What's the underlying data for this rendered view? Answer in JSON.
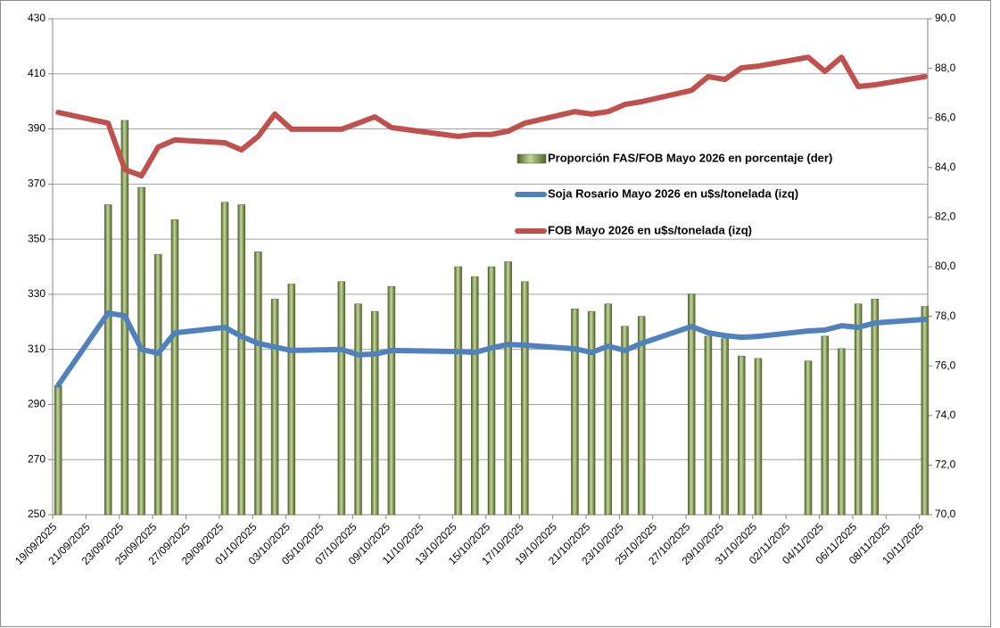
{
  "chart_data": {
    "type": "combo",
    "x": [
      "19/09/2025",
      "22/09/2025",
      "23/09/2025",
      "24/09/2025",
      "25/09/2025",
      "26/09/2025",
      "29/09/2025",
      "30/09/2025",
      "01/10/2025",
      "02/10/2025",
      "03/10/2025",
      "06/10/2025",
      "07/10/2025",
      "08/10/2025",
      "09/10/2025",
      "13/10/2025",
      "14/10/2025",
      "15/10/2025",
      "16/10/2025",
      "17/10/2025",
      "20/10/2025",
      "21/10/2025",
      "22/10/2025",
      "23/10/2025",
      "24/10/2025",
      "27/10/2025",
      "28/10/2025",
      "29/10/2025",
      "30/10/2025",
      "31/10/2025",
      "03/11/2025",
      "04/11/2025",
      "05/11/2025",
      "06/11/2025",
      "07/11/2025",
      "10/11/2025"
    ],
    "series": [
      {
        "name": "Proporción FAS/FOB Mayo 2026 en porcentaje (der)",
        "type": "bar",
        "axis": "y2",
        "color": "#6b8c2e",
        "values": [
          75.2,
          82.5,
          85.9,
          83.2,
          80.5,
          81.9,
          82.6,
          82.5,
          80.6,
          78.7,
          79.3,
          79.4,
          78.5,
          78.2,
          79.2,
          80.0,
          79.6,
          80.0,
          80.2,
          79.4,
          78.3,
          78.2,
          78.5,
          77.6,
          78.0,
          78.9,
          77.2,
          77.1,
          76.4,
          76.3,
          76.2,
          77.2,
          76.7,
          78.5,
          78.7,
          78.4
        ]
      },
      {
        "name": "Soja Rosario Mayo 2026 en u$s/tonelada (izq)",
        "type": "line",
        "color": "#4f81bd",
        "values": [
          297,
          323.2,
          322.2,
          310,
          308.6,
          316,
          318,
          314.7,
          312.2,
          310.9,
          309.6,
          310,
          308,
          308.3,
          309.6,
          309.2,
          308.9,
          310.5,
          311.8,
          311.5,
          310.2,
          308.9,
          311.2,
          309.6,
          312.2,
          318.3,
          316,
          315,
          314.4,
          314.7,
          316.7,
          317,
          318.6,
          318,
          319.6,
          320.9
        ]
      },
      {
        "name": "FOB Mayo 2026 en u$s/tonelada (izq)",
        "type": "line",
        "color": "#c0504d",
        "values": [
          396,
          392.1,
          375.3,
          373,
          383.4,
          386,
          385,
          382.4,
          387.3,
          395.4,
          389.9,
          389.9,
          392.1,
          394.4,
          390.5,
          387.3,
          388,
          388,
          389.2,
          392.1,
          396.3,
          395.4,
          396.3,
          398.9,
          399.9,
          404,
          409,
          408,
          412.2,
          412.8,
          416,
          410.9,
          416,
          405.4,
          406,
          409
        ]
      }
    ],
    "ylim": [
      250,
      430
    ],
    "yticks": [
      250,
      270,
      290,
      310,
      330,
      350,
      370,
      390,
      410,
      430
    ],
    "y2lim": [
      70,
      90
    ],
    "y2ticks": [
      {
        "value": 70,
        "label": "70,0"
      },
      {
        "value": 72,
        "label": "72,0"
      },
      {
        "value": 74,
        "label": "74,0"
      },
      {
        "value": 76,
        "label": "76,0"
      },
      {
        "value": 78,
        "label": "78,0"
      },
      {
        "value": 80,
        "label": "80,0"
      },
      {
        "value": 82,
        "label": "82,0"
      },
      {
        "value": 84,
        "label": "84,0"
      },
      {
        "value": 86,
        "label": "86,0"
      },
      {
        "value": 88,
        "label": "88,0"
      },
      {
        "value": 90,
        "label": "90,0"
      }
    ],
    "xticks": [
      "19/09/2025",
      "21/09/2025",
      "23/09/2025",
      "25/09/2025",
      "27/09/2025",
      "29/09/2025",
      "01/10/2025",
      "03/10/2025",
      "05/10/2025",
      "07/10/2025",
      "09/10/2025",
      "11/10/2025",
      "13/10/2025",
      "15/10/2025",
      "17/10/2025",
      "19/10/2025",
      "21/10/2025",
      "23/10/2025",
      "25/10/2025",
      "27/10/2025",
      "29/10/2025",
      "31/10/2025",
      "02/11/2025",
      "04/11/2025",
      "06/11/2025",
      "08/11/2025",
      "10/11/2025"
    ],
    "grid": true,
    "legend": "right"
  }
}
